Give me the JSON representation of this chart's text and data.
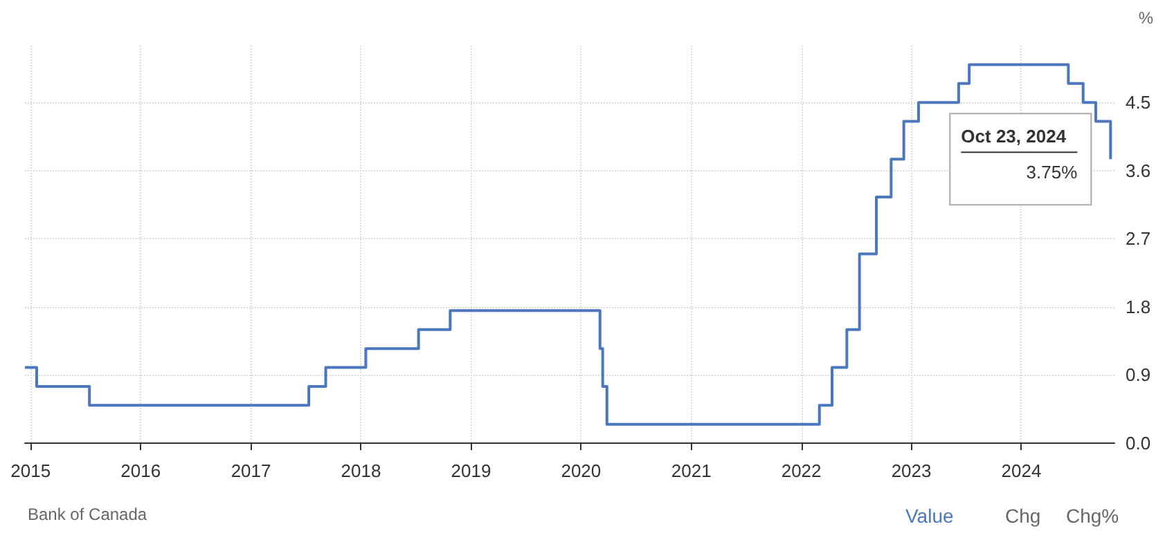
{
  "chart_data": {
    "type": "step",
    "ylabel": "%",
    "x": [
      "2014-12-13",
      "2015-01-21",
      "2015-07-15",
      "2017-07-12",
      "2017-09-06",
      "2018-01-17",
      "2018-07-11",
      "2018-10-24",
      "2020-03-04",
      "2020-03-13",
      "2020-03-27",
      "2022-03-02",
      "2022-04-13",
      "2022-06-01",
      "2022-07-13",
      "2022-09-07",
      "2022-10-26",
      "2022-12-07",
      "2023-01-25",
      "2023-06-07",
      "2023-07-12",
      "2024-06-05",
      "2024-07-24",
      "2024-09-04",
      "2024-10-23"
    ],
    "series": [
      {
        "color": "#4a77be",
        "values": [
          1.0,
          0.75,
          0.5,
          0.75,
          1.0,
          1.25,
          1.5,
          1.75,
          1.25,
          0.75,
          0.25,
          0.5,
          1.0,
          1.5,
          2.5,
          3.25,
          3.75,
          4.25,
          4.5,
          4.75,
          5.0,
          4.75,
          4.5,
          4.25,
          3.75
        ]
      }
    ],
    "xlim": [
      "2014-12-13",
      "2024-11-05"
    ],
    "xticks": [
      "2015",
      "2016",
      "2017",
      "2018",
      "2019",
      "2020",
      "2021",
      "2022",
      "2023",
      "2024"
    ],
    "ylim": [
      -0.1,
      5.25
    ],
    "yticks": [
      {
        "value": 0,
        "label": "0.0"
      },
      0.9,
      1.8,
      2.7,
      3.6,
      4.5
    ],
    "grid": true,
    "marker": "none",
    "line_style": "solid",
    "annotations": [
      {
        "text": "Oct 23, 2024",
        "x": "2024-10-23",
        "y": 3.75
      },
      {
        "text": "3.75%",
        "x": "2024-10-23",
        "y": 3.75
      },
      "Bank of Canada",
      "Value",
      "Chg",
      "Chg%"
    ]
  }
}
